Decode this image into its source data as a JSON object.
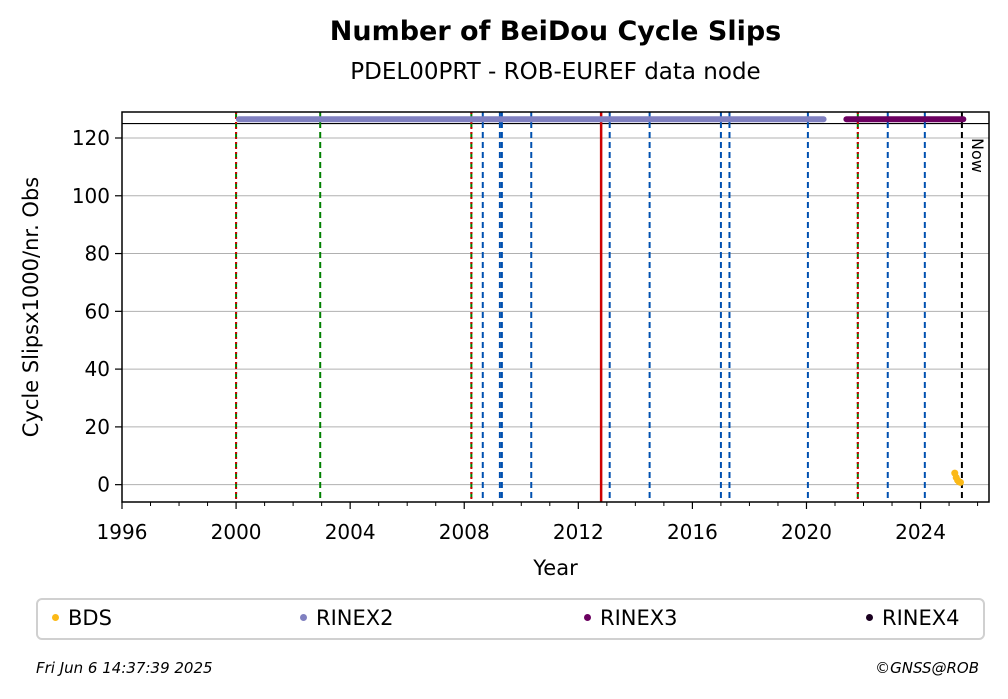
{
  "chart_data": {
    "type": "scatter",
    "title": "Number of BeiDou Cycle Slips",
    "subtitle": "PDEL00PRT - ROB-EUREF data node",
    "xlabel": "Year",
    "ylabel": "Cycle Slipsx1000/nr. Obs",
    "xlim": [
      1996,
      2026.4
    ],
    "ylim": [
      -6,
      129
    ],
    "x_ticks": [
      "1996",
      "2000",
      "2004",
      "2008",
      "2012",
      "2016",
      "2020",
      "2024"
    ],
    "y_ticks": [
      "0",
      "20",
      "40",
      "60",
      "80",
      "100",
      "120"
    ],
    "grid": "horizontal",
    "top_line_y": 125,
    "series": [
      {
        "name": "BDS",
        "color": "#fbb917",
        "points": [
          [
            2025.2,
            4
          ],
          [
            2025.25,
            2.5
          ],
          [
            2025.3,
            1.5
          ],
          [
            2025.35,
            1
          ],
          [
            2025.4,
            0.8
          ]
        ]
      },
      {
        "name": "RINEX2",
        "color": "#8080c0",
        "x_start": 2000.1,
        "x_end": 2020.6,
        "y": 126.5
      },
      {
        "name": "RINEX3",
        "color": "#6b0060",
        "x_start": 2021.4,
        "x_end": 2025.5,
        "y": 126.5
      },
      {
        "name": "RINEX4",
        "color": "#1a0020",
        "points": []
      }
    ],
    "vlines": [
      {
        "x": 2000.0,
        "color": "#008000",
        "style": "dashed"
      },
      {
        "x": 2000.0,
        "color": "#cc0000",
        "style": "dotted"
      },
      {
        "x": 2002.95,
        "color": "#008000",
        "style": "dashed"
      },
      {
        "x": 2008.25,
        "color": "#008000",
        "style": "dashed"
      },
      {
        "x": 2008.25,
        "color": "#cc0000",
        "style": "dotted"
      },
      {
        "x": 2008.65,
        "color": "#0050b0",
        "style": "dashed"
      },
      {
        "x": 2009.25,
        "color": "#0050b0",
        "style": "dashed"
      },
      {
        "x": 2009.32,
        "color": "#0050b0",
        "style": "dashed"
      },
      {
        "x": 2010.35,
        "color": "#0050b0",
        "style": "dashed"
      },
      {
        "x": 2012.8,
        "color": "#cc0000",
        "style": "solid"
      },
      {
        "x": 2013.1,
        "color": "#0050b0",
        "style": "dashed"
      },
      {
        "x": 2014.5,
        "color": "#0050b0",
        "style": "dashed"
      },
      {
        "x": 2017.0,
        "color": "#0050b0",
        "style": "dashed"
      },
      {
        "x": 2017.3,
        "color": "#0050b0",
        "style": "dashed"
      },
      {
        "x": 2020.05,
        "color": "#0050b0",
        "style": "dashed"
      },
      {
        "x": 2021.8,
        "color": "#008000",
        "style": "dashed"
      },
      {
        "x": 2021.8,
        "color": "#cc0000",
        "style": "dotted"
      },
      {
        "x": 2022.85,
        "color": "#0050b0",
        "style": "dashed"
      },
      {
        "x": 2024.15,
        "color": "#0050b0",
        "style": "dashed"
      },
      {
        "x": 2025.45,
        "color": "#000000",
        "style": "dashed"
      }
    ],
    "now_label": "Now",
    "legend_placement": "bottom"
  },
  "legend": {
    "items": [
      {
        "label": "BDS",
        "color": "#fbb917"
      },
      {
        "label": "RINEX2",
        "color": "#8080c0"
      },
      {
        "label": "RINEX3",
        "color": "#6b0060"
      },
      {
        "label": "RINEX4",
        "color": "#1a0020"
      }
    ]
  },
  "footer": {
    "timestamp": "Fri Jun  6 14:37:39 2025",
    "copyright": "©GNSS@ROB"
  }
}
